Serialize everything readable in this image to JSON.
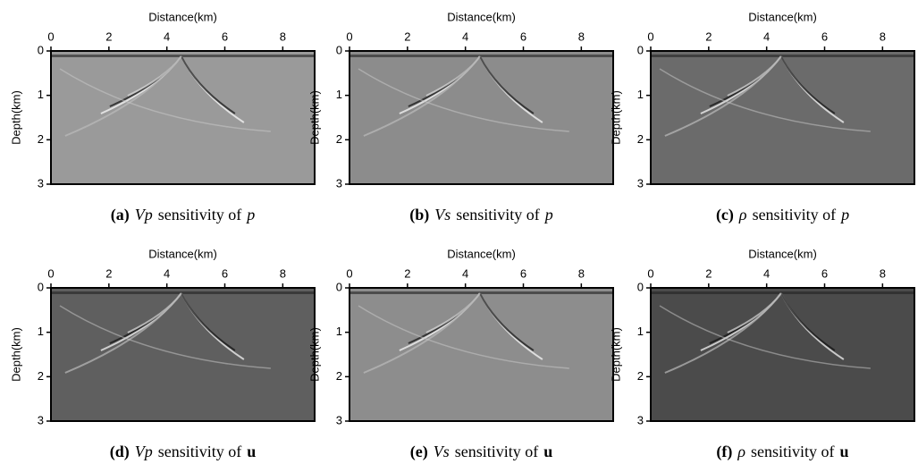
{
  "panels": [
    {
      "x_label": "Distance(km)",
      "y_label": "Depth(km)",
      "xlim": [
        0,
        9.1
      ],
      "ylim": [
        0,
        3
      ],
      "xticks": [
        0,
        2,
        4,
        6,
        8
      ],
      "yticks": [
        0,
        1,
        2,
        3
      ],
      "background": "#9a9a9a",
      "caption": {
        "label": "(a)",
        "quantity": "Vp",
        "text": "sensitivity of",
        "variable": "p"
      }
    },
    {
      "x_label": "Distance(km)",
      "y_label": "Depth(km)",
      "xlim": [
        0,
        9.1
      ],
      "ylim": [
        0,
        3
      ],
      "xticks": [
        0,
        2,
        4,
        6,
        8
      ],
      "yticks": [
        0,
        1,
        2,
        3
      ],
      "background": "#8c8c8c",
      "caption": {
        "label": "(b)",
        "quantity": "Vs",
        "text": "sensitivity of",
        "variable": "p"
      }
    },
    {
      "x_label": "Distance(km)",
      "y_label": "Depth(km)",
      "xlim": [
        0,
        9.1
      ],
      "ylim": [
        0,
        3
      ],
      "xticks": [
        0,
        2,
        4,
        6,
        8
      ],
      "yticks": [
        0,
        1,
        2,
        3
      ],
      "background": "#6b6b6b",
      "caption": {
        "label": "(c)",
        "quantity": "ρ",
        "text": "sensitivity of",
        "variable": "p"
      }
    },
    {
      "x_label": "Distance(km)",
      "y_label": "Depth(km)",
      "xlim": [
        0,
        9.1
      ],
      "ylim": [
        0,
        3
      ],
      "xticks": [
        0,
        2,
        4,
        6,
        8
      ],
      "yticks": [
        0,
        1,
        2,
        3
      ],
      "background": "#5f5f5f",
      "caption": {
        "label": "(d)",
        "quantity": "Vp",
        "text": "sensitivity of",
        "variable": "u"
      }
    },
    {
      "x_label": "Distance(km)",
      "y_label": "Depth(km)",
      "xlim": [
        0,
        9.1
      ],
      "ylim": [
        0,
        3
      ],
      "xticks": [
        0,
        2,
        4,
        6,
        8
      ],
      "yticks": [
        0,
        1,
        2,
        3
      ],
      "background": "#8d8d8d",
      "caption": {
        "label": "(e)",
        "quantity": "Vs",
        "text": "sensitivity of",
        "variable": "u"
      }
    },
    {
      "x_label": "Distance(km)",
      "y_label": "Depth(km)",
      "xlim": [
        0,
        9.1
      ],
      "ylim": [
        0,
        3
      ],
      "xticks": [
        0,
        2,
        4,
        6,
        8
      ],
      "yticks": [
        0,
        1,
        2,
        3
      ],
      "background": "#4b4b4b",
      "caption": {
        "label": "(f)",
        "quantity": "ρ",
        "text": "sensitivity of",
        "variable": "u"
      }
    }
  ]
}
